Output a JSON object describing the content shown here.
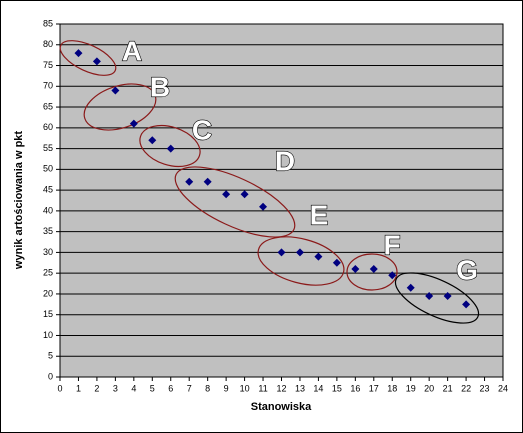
{
  "chart_data": {
    "type": "scatter",
    "x_label": "Stanowiska",
    "y_label": "wynik artościowania w pkt",
    "series": [
      {
        "color": "#000080",
        "x": [
          1,
          2,
          3,
          4,
          5,
          6,
          7,
          8,
          9,
          10,
          11,
          12,
          13,
          14,
          15,
          16,
          17,
          18,
          19,
          20,
          21,
          22
        ],
        "values": [
          78,
          76,
          69,
          61,
          57,
          55,
          47,
          47,
          44,
          44,
          41,
          30,
          30,
          29,
          27.5,
          26,
          26,
          24.5,
          21.5,
          19.5,
          19.5,
          17.5
        ]
      }
    ],
    "annotations": [
      "A",
      "B",
      "C",
      "D",
      "E",
      "F",
      "G"
    ],
    "xlim": [
      0,
      24
    ],
    "xticks": [
      0,
      1,
      2,
      3,
      4,
      5,
      6,
      7,
      8,
      9,
      10,
      11,
      12,
      13,
      14,
      15,
      16,
      17,
      18,
      19,
      20,
      21,
      22,
      23,
      24
    ],
    "ylim": [
      0,
      85
    ],
    "yticks": [
      0,
      5,
      10,
      15,
      20,
      25,
      30,
      35,
      40,
      45,
      50,
      55,
      60,
      65,
      70,
      75,
      80,
      85
    ],
    "grid": true,
    "plot_background": "#c0c0c0"
  }
}
